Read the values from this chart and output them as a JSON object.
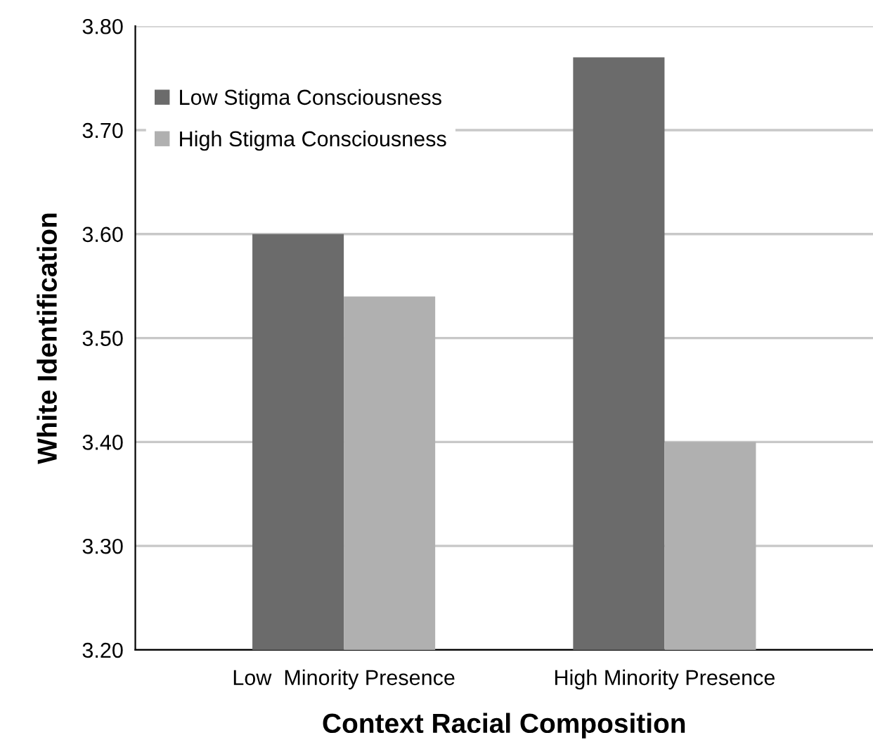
{
  "chart_data": {
    "type": "bar",
    "xlabel": "Context Racial Composition",
    "ylabel": "White Identification",
    "categories": [
      "Low  Minority Presence",
      "High Minority Presence"
    ],
    "series": [
      {
        "name": "Low Stigma Consciousness",
        "color": "#6b6b6b",
        "values": [
          3.6,
          3.77
        ]
      },
      {
        "name": "High Stigma Consciousness",
        "color": "#b0b0b0",
        "values": [
          3.54,
          3.4
        ]
      }
    ],
    "ylim": [
      3.2,
      3.8
    ],
    "yticks": [
      {
        "value": 3.2,
        "label": "3.20"
      },
      {
        "value": 3.3,
        "label": "3.30"
      },
      {
        "value": 3.4,
        "label": "3.40"
      },
      {
        "value": 3.5,
        "label": "3.50"
      },
      {
        "value": 3.6,
        "label": "3.60"
      },
      {
        "value": 3.7,
        "label": "3.70"
      },
      {
        "value": 3.8,
        "label": "3.80"
      }
    ],
    "grid": "y",
    "legend": "top left"
  }
}
